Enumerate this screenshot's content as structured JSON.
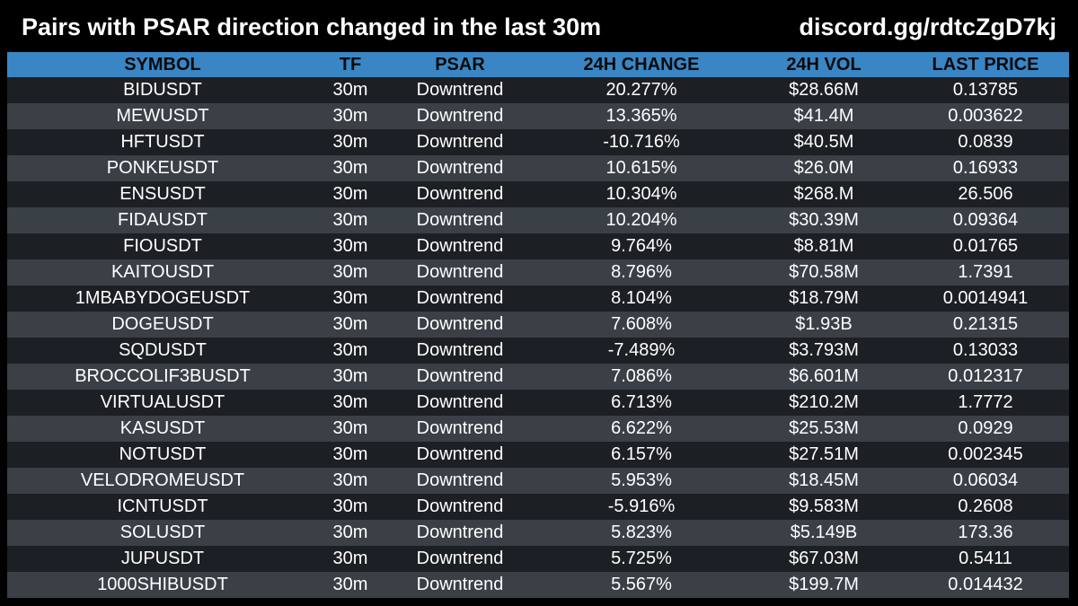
{
  "header": {
    "title": "Pairs with PSAR direction changed in the last 30m",
    "link": "discord.gg/rdtcZgD7kj"
  },
  "table": {
    "columns": [
      "SYMBOL",
      "TF",
      "PSAR",
      "24H CHANGE",
      "24H VOL",
      "LAST PRICE"
    ],
    "rows": [
      [
        "BIDUSDT",
        "30m",
        "Downtrend",
        "20.277%",
        "$28.66M",
        "0.13785"
      ],
      [
        "MEWUSDT",
        "30m",
        "Downtrend",
        "13.365%",
        "$41.4M",
        "0.003622"
      ],
      [
        "HFTUSDT",
        "30m",
        "Downtrend",
        "-10.716%",
        "$40.5M",
        "0.0839"
      ],
      [
        "PONKEUSDT",
        "30m",
        "Downtrend",
        "10.615%",
        "$26.0M",
        "0.16933"
      ],
      [
        "ENSUSDT",
        "30m",
        "Downtrend",
        "10.304%",
        "$268.M",
        "26.506"
      ],
      [
        "FIDAUSDT",
        "30m",
        "Downtrend",
        "10.204%",
        "$30.39M",
        "0.09364"
      ],
      [
        "FIOUSDT",
        "30m",
        "Downtrend",
        "9.764%",
        "$8.81M",
        "0.01765"
      ],
      [
        "KAITOUSDT",
        "30m",
        "Downtrend",
        "8.796%",
        "$70.58M",
        "1.7391"
      ],
      [
        "1MBABYDOGEUSDT",
        "30m",
        "Downtrend",
        "8.104%",
        "$18.79M",
        "0.0014941"
      ],
      [
        "DOGEUSDT",
        "30m",
        "Downtrend",
        "7.608%",
        "$1.93B",
        "0.21315"
      ],
      [
        "SQDUSDT",
        "30m",
        "Downtrend",
        "-7.489%",
        "$3.793M",
        "0.13033"
      ],
      [
        "BROCCOLIF3BUSDT",
        "30m",
        "Downtrend",
        "7.086%",
        "$6.601M",
        "0.012317"
      ],
      [
        "VIRTUALUSDT",
        "30m",
        "Downtrend",
        "6.713%",
        "$210.2M",
        "1.7772"
      ],
      [
        "KASUSDT",
        "30m",
        "Downtrend",
        "6.622%",
        "$25.53M",
        "0.0929"
      ],
      [
        "NOTUSDT",
        "30m",
        "Downtrend",
        "6.157%",
        "$27.51M",
        "0.002345"
      ],
      [
        "VELODROMEUSDT",
        "30m",
        "Downtrend",
        "5.953%",
        "$18.45M",
        "0.06034"
      ],
      [
        "ICNTUSDT",
        "30m",
        "Downtrend",
        "-5.916%",
        "$9.583M",
        "0.2608"
      ],
      [
        "SOLUSDT",
        "30m",
        "Downtrend",
        "5.823%",
        "$5.149B",
        "173.36"
      ],
      [
        "JUPUSDT",
        "30m",
        "Downtrend",
        "5.725%",
        "$67.03M",
        "0.5411"
      ],
      [
        "1000SHIBUSDT",
        "30m",
        "Downtrend",
        "5.567%",
        "$199.7M",
        "0.014432"
      ]
    ]
  },
  "colors": {
    "background": "#000000",
    "header_row": "#3a86c4",
    "row_dark": "#1c1f23",
    "row_light": "#3a4046",
    "text": "#ffffff",
    "header_text": "#0a0a0a"
  }
}
